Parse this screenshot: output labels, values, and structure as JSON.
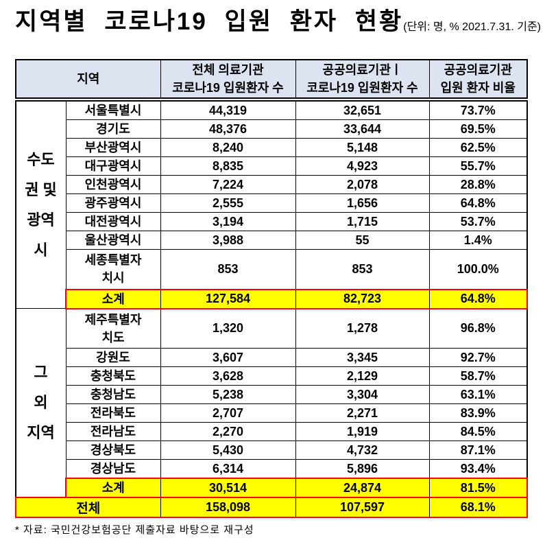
{
  "title": {
    "main": "지역별 코로나19 입원 환자 현황",
    "unit_note": "(단위: 명, % 2021.7.31. 기준)"
  },
  "table": {
    "header": {
      "region": "지역",
      "all_institutions": "전체 의료기관\n코로나19 입원환자 수",
      "public_institutions": "공공의료기관ㅣ\n코로나19 입원환자 수",
      "public_ratio": "공공의료기관\n입원 환자 비율"
    },
    "groups": [
      {
        "label": "수도\n권 및\n광역\n시",
        "rows": [
          {
            "region": "서울특별시",
            "total": "44,319",
            "public": "32,651",
            "ratio": "73.7%"
          },
          {
            "region": "경기도",
            "total": "48,376",
            "public": "33,644",
            "ratio": "69.5%"
          },
          {
            "region": "부산광역시",
            "total": "8,240",
            "public": "5,148",
            "ratio": "62.5%"
          },
          {
            "region": "대구광역시",
            "total": "8,835",
            "public": "4,923",
            "ratio": "55.7%"
          },
          {
            "region": "인천광역시",
            "total": "7,224",
            "public": "2,078",
            "ratio": "28.8%"
          },
          {
            "region": "광주광역시",
            "total": "2,555",
            "public": "1,656",
            "ratio": "64.8%"
          },
          {
            "region": "대전광역시",
            "total": "3,194",
            "public": "1,715",
            "ratio": "53.7%"
          },
          {
            "region": "울산광역시",
            "total": "3,988",
            "public": "55",
            "ratio": "1.4%"
          },
          {
            "region": "세종특별자\n치시",
            "total": "853",
            "public": "853",
            "ratio": "100.0%"
          }
        ],
        "subtotal": {
          "label": "소계",
          "total": "127,584",
          "public": "82,723",
          "ratio": "64.8%"
        }
      },
      {
        "label": "그\n외\n지역",
        "rows": [
          {
            "region": "제주특별자\n치도",
            "total": "1,320",
            "public": "1,278",
            "ratio": "96.8%"
          },
          {
            "region": "강원도",
            "total": "3,607",
            "public": "3,345",
            "ratio": "92.7%"
          },
          {
            "region": "충청북도",
            "total": "3,628",
            "public": "2,129",
            "ratio": "58.7%"
          },
          {
            "region": "충청남도",
            "total": "5,238",
            "public": "3,304",
            "ratio": "63.1%"
          },
          {
            "region": "전라북도",
            "total": "2,707",
            "public": "2,271",
            "ratio": "83.9%"
          },
          {
            "region": "전라남도",
            "total": "2,270",
            "public": "1,919",
            "ratio": "84.5%"
          },
          {
            "region": "경상북도",
            "total": "5,430",
            "public": "4,732",
            "ratio": "87.1%"
          },
          {
            "region": "경상남도",
            "total": "6,314",
            "public": "5,896",
            "ratio": "93.4%"
          }
        ],
        "subtotal": {
          "label": "소계",
          "total": "30,514",
          "public": "24,874",
          "ratio": "81.5%"
        }
      }
    ],
    "total": {
      "label": "전체",
      "total": "158,098",
      "public": "107,597",
      "ratio": "68.1%"
    }
  },
  "footnote": "* 자료: 국민건강보험공단 제출자료 바탕으로 재구성",
  "colors": {
    "header_bg": "#dbe4f0",
    "highlight_bg": "#ffff00",
    "highlight_border": "#ff0000"
  }
}
